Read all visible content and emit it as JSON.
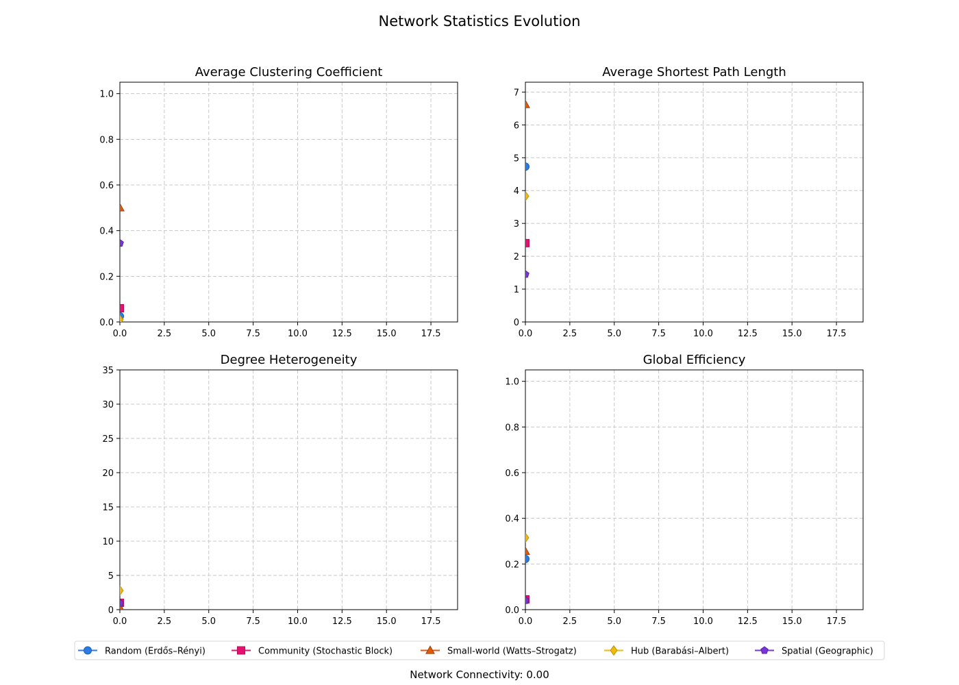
{
  "title": "Network Statistics Evolution",
  "footer": "Network Connectivity: 0.00",
  "series_styles": [
    {
      "name": "Random (Erdős–Rényi)",
      "color": "#2a7be4",
      "edge": "#1d5fb8",
      "marker": "circle"
    },
    {
      "name": "Community (Stochastic Block)",
      "color": "#e6116e",
      "edge": "#b50d56",
      "marker": "square"
    },
    {
      "name": "Small-world (Watts–Strogatz)",
      "color": "#e05a0c",
      "edge": "#a33f07",
      "marker": "triangle"
    },
    {
      "name": "Hub (Barabási–Albert)",
      "color": "#f0b90c",
      "edge": "#c09100",
      "marker": "diamond"
    },
    {
      "name": "Spatial (Geographic)",
      "color": "#7a35d6",
      "edge": "#5a22a8",
      "marker": "pentagon"
    }
  ],
  "chart_data": [
    {
      "type": "line",
      "title": "Average Clustering Coefficient",
      "xlim": [
        0,
        19
      ],
      "ylim": [
        0,
        1.05
      ],
      "xticks": [
        0.0,
        2.5,
        5.0,
        7.5,
        10.0,
        12.5,
        15.0,
        17.5
      ],
      "xtick_labels": [
        "0.0",
        "2.5",
        "5.0",
        "7.5",
        "10.0",
        "12.5",
        "15.0",
        "17.5"
      ],
      "yticks": [
        0.0,
        0.2,
        0.4,
        0.6,
        0.8,
        1.0
      ],
      "ytick_labels": [
        "0.0",
        "0.2",
        "0.4",
        "0.6",
        "0.8",
        "1.0"
      ],
      "grid": true,
      "series": [
        {
          "name": "Random (Erdős–Rényi)",
          "x": [
            0
          ],
          "y": [
            0.025
          ]
        },
        {
          "name": "Community (Stochastic Block)",
          "x": [
            0
          ],
          "y": [
            0.06
          ]
        },
        {
          "name": "Small-world (Watts–Strogatz)",
          "x": [
            0
          ],
          "y": [
            0.5
          ]
        },
        {
          "name": "Hub (Barabási–Albert)",
          "x": [
            0
          ],
          "y": [
            0.01
          ]
        },
        {
          "name": "Spatial (Geographic)",
          "x": [
            0
          ],
          "y": [
            0.345
          ]
        }
      ]
    },
    {
      "type": "line",
      "title": "Average Shortest Path Length",
      "xlim": [
        0,
        19
      ],
      "ylim": [
        0,
        7.3
      ],
      "xticks": [
        0.0,
        2.5,
        5.0,
        7.5,
        10.0,
        12.5,
        15.0,
        17.5
      ],
      "xtick_labels": [
        "0.0",
        "2.5",
        "5.0",
        "7.5",
        "10.0",
        "12.5",
        "15.0",
        "17.5"
      ],
      "yticks": [
        0,
        1,
        2,
        3,
        4,
        5,
        6,
        7
      ],
      "ytick_labels": [
        "0",
        "1",
        "2",
        "3",
        "4",
        "5",
        "6",
        "7"
      ],
      "grid": true,
      "series": [
        {
          "name": "Random (Erdős–Rényi)",
          "x": [
            0
          ],
          "y": [
            4.73
          ]
        },
        {
          "name": "Community (Stochastic Block)",
          "x": [
            0
          ],
          "y": [
            2.4
          ]
        },
        {
          "name": "Small-world (Watts–Strogatz)",
          "x": [
            0
          ],
          "y": [
            6.62
          ]
        },
        {
          "name": "Hub (Barabási–Albert)",
          "x": [
            0
          ],
          "y": [
            3.83
          ]
        },
        {
          "name": "Spatial (Geographic)",
          "x": [
            0
          ],
          "y": [
            1.45
          ]
        }
      ]
    },
    {
      "type": "line",
      "title": "Degree Heterogeneity",
      "xlim": [
        0,
        19
      ],
      "ylim": [
        0,
        35
      ],
      "xticks": [
        0.0,
        2.5,
        5.0,
        7.5,
        10.0,
        12.5,
        15.0,
        17.5
      ],
      "xtick_labels": [
        "0.0",
        "2.5",
        "5.0",
        "7.5",
        "10.0",
        "12.5",
        "15.0",
        "17.5"
      ],
      "yticks": [
        0,
        5,
        10,
        15,
        20,
        25,
        30,
        35
      ],
      "ytick_labels": [
        "0",
        "5",
        "10",
        "15",
        "20",
        "25",
        "30",
        "35"
      ],
      "grid": true,
      "series": [
        {
          "name": "Random (Erdős–Rényi)",
          "x": [
            0
          ],
          "y": [
            0.9
          ]
        },
        {
          "name": "Community (Stochastic Block)",
          "x": [
            0
          ],
          "y": [
            1.0
          ]
        },
        {
          "name": "Small-world (Watts–Strogatz)",
          "x": [
            0
          ],
          "y": [
            0.3
          ]
        },
        {
          "name": "Hub (Barabási–Albert)",
          "x": [
            0
          ],
          "y": [
            2.8
          ]
        },
        {
          "name": "Spatial (Geographic)",
          "x": [
            0
          ],
          "y": [
            0.95
          ]
        }
      ]
    },
    {
      "type": "line",
      "title": "Global Efficiency",
      "xlim": [
        0,
        19
      ],
      "ylim": [
        0,
        1.05
      ],
      "xticks": [
        0.0,
        2.5,
        5.0,
        7.5,
        10.0,
        12.5,
        15.0,
        17.5
      ],
      "xtick_labels": [
        "0.0",
        "2.5",
        "5.0",
        "7.5",
        "10.0",
        "12.5",
        "15.0",
        "17.5"
      ],
      "yticks": [
        0.0,
        0.2,
        0.4,
        0.6,
        0.8,
        1.0
      ],
      "ytick_labels": [
        "0.0",
        "0.2",
        "0.4",
        "0.6",
        "0.8",
        "1.0"
      ],
      "grid": true,
      "series": [
        {
          "name": "Random (Erdős–Rényi)",
          "x": [
            0
          ],
          "y": [
            0.222
          ]
        },
        {
          "name": "Community (Stochastic Block)",
          "x": [
            0
          ],
          "y": [
            0.045
          ]
        },
        {
          "name": "Small-world (Watts–Strogatz)",
          "x": [
            0
          ],
          "y": [
            0.255
          ]
        },
        {
          "name": "Hub (Barabási–Albert)",
          "x": [
            0
          ],
          "y": [
            0.315
          ]
        },
        {
          "name": "Spatial (Geographic)",
          "x": [
            0
          ],
          "y": [
            0.04
          ]
        }
      ]
    }
  ]
}
